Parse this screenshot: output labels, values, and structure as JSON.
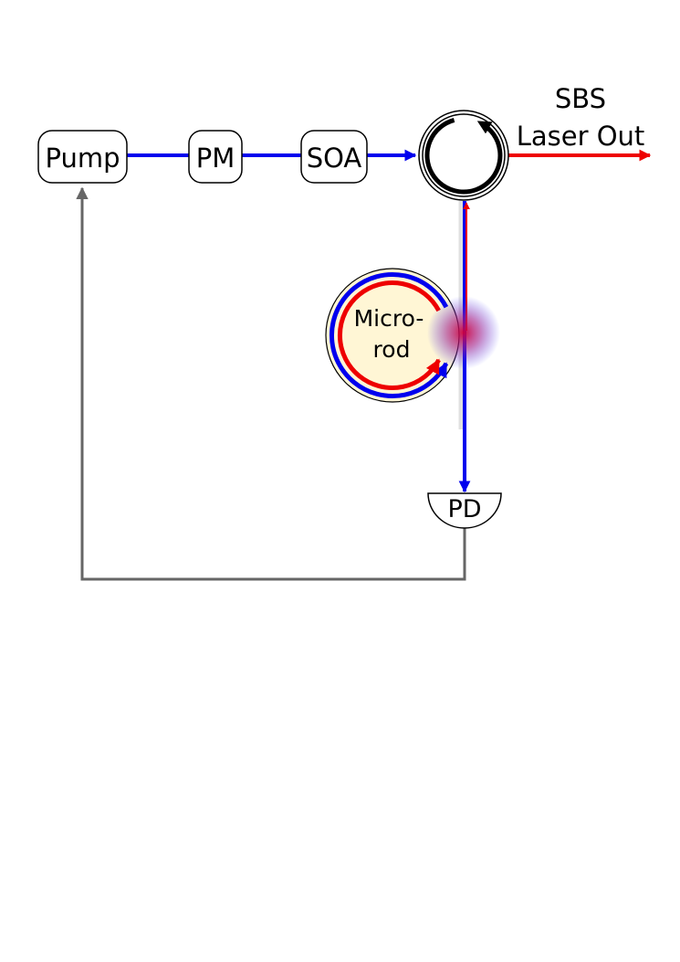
{
  "components": {
    "pump": {
      "label": "Pump"
    },
    "pm": {
      "label": "PM"
    },
    "soa": {
      "label": "SOA"
    },
    "pd": {
      "label": "PD"
    },
    "microrod": {
      "label_line1": "Micro-",
      "label_line2": "rod"
    },
    "output": {
      "label_line1": "SBS",
      "label_line2": "Laser Out"
    }
  },
  "colors": {
    "pump_light": "#0000ee",
    "sbs_light": "#ee0000",
    "feedback": "#666666",
    "microrod_fill": "#fff6d5"
  }
}
